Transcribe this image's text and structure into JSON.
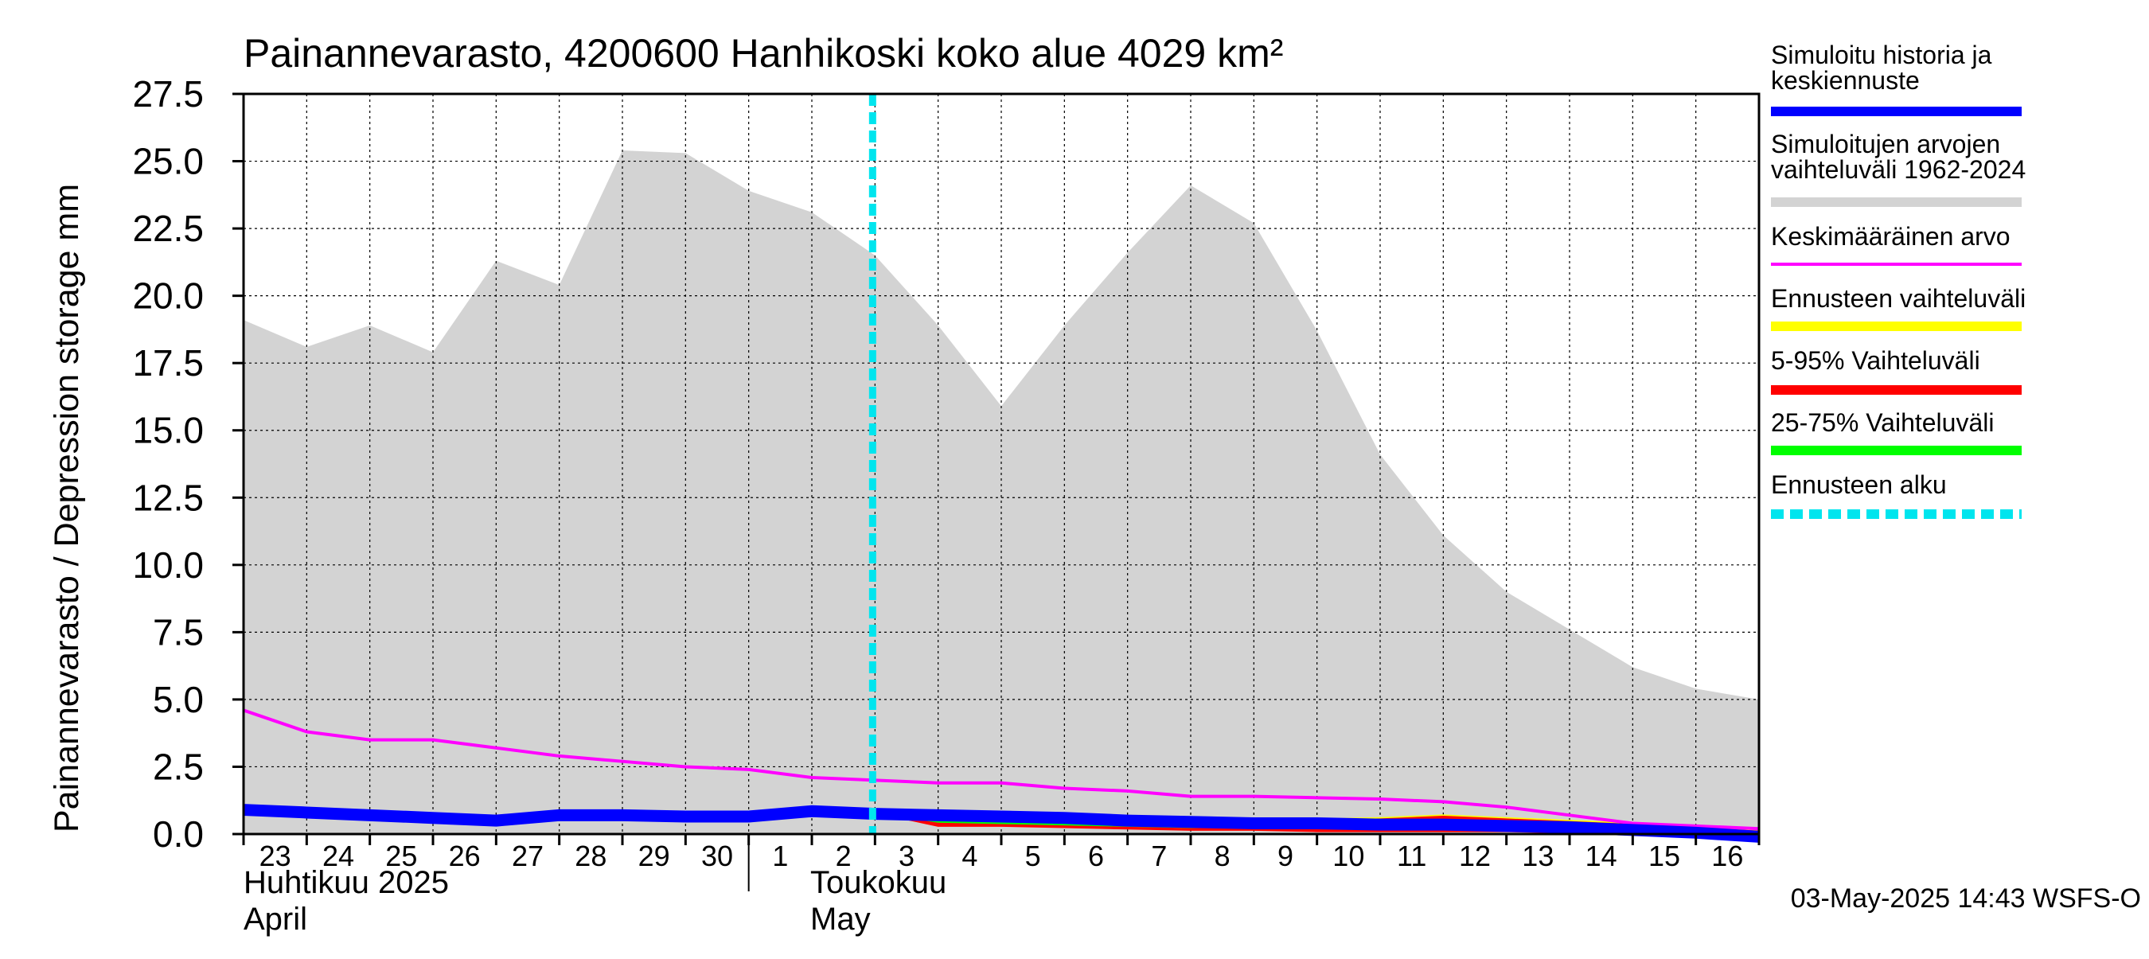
{
  "chart_data": {
    "type": "area",
    "title": "Painannevarasto, 4200600 Hanhikoski koko alue 4029 km²",
    "ylabel": "Painannevarasto / Depression storage    mm",
    "ylim": [
      0,
      27.5
    ],
    "yticks": [
      "0.0",
      "2.5",
      "5.0",
      "7.5",
      "10.0",
      "12.5",
      "15.0",
      "17.5",
      "20.0",
      "22.5",
      "25.0",
      "27.5"
    ],
    "grid": true,
    "legend_position": "right",
    "x_day_labels": [
      "23",
      "24",
      "25",
      "26",
      "27",
      "28",
      "29",
      "30",
      "1",
      "2",
      "3",
      "4",
      "5",
      "6",
      "7",
      "8",
      "9",
      "10",
      "11",
      "12",
      "13",
      "14",
      "15",
      "16"
    ],
    "month_labels": {
      "april_fi": "Huhtikuu  2025",
      "april_en": "April",
      "may_fi": "Toukokuu",
      "may_en": "May"
    },
    "forecast_start_day_index": 10,
    "series": [
      {
        "name": "Simuloitujen arvojen vaihteluväli 1962-2024",
        "kind": "band",
        "color": "#d3d3d3",
        "upper": [
          19.1,
          18.1,
          18.9,
          17.9,
          21.3,
          20.4,
          25.4,
          25.3,
          23.9,
          23.1,
          21.5,
          18.9,
          15.9,
          18.9,
          21.6,
          24.1,
          22.7,
          18.7,
          14.1,
          11.1,
          9.0,
          7.6,
          6.2,
          5.4,
          5.0
        ],
        "lower": [
          0.0,
          0.0,
          0.0,
          0.0,
          0.0,
          0.0,
          0.0,
          0.0,
          0.0,
          0.0,
          0.0,
          0.0,
          0.0,
          0.0,
          0.0,
          0.0,
          0.0,
          0.0,
          0.0,
          0.0,
          0.0,
          0.0,
          0.0,
          0.0,
          0.0
        ]
      },
      {
        "name": "Keskimääräinen arvo",
        "kind": "line",
        "color": "#ff00ff",
        "values": [
          4.6,
          3.8,
          3.5,
          3.5,
          3.2,
          2.9,
          2.7,
          2.5,
          2.4,
          2.1,
          2.0,
          1.9,
          1.9,
          1.7,
          1.6,
          1.4,
          1.4,
          1.35,
          1.3,
          1.2,
          1.0,
          0.7,
          0.4,
          0.3,
          0.2
        ]
      },
      {
        "name": "Ennusteen vaihteluväli",
        "kind": "forecast_band",
        "color": "#ffff00",
        "upper": [
          0.8,
          0.7,
          0.7,
          0.65,
          0.6,
          0.55,
          0.55,
          0.55,
          0.6,
          0.7,
          0.6,
          0.5,
          0.4,
          0.25,
          0.15
        ],
        "lower": [
          0.8,
          0.6,
          0.5,
          0.45,
          0.4,
          0.35,
          0.3,
          0.3,
          0.3,
          0.25,
          0.2,
          0.15,
          0.1,
          0.05,
          0.0
        ]
      },
      {
        "name": "5-95% Vaihteluväli",
        "kind": "forecast_band",
        "color": "#ff0000",
        "upper": [
          0.8,
          0.7,
          0.65,
          0.6,
          0.55,
          0.5,
          0.5,
          0.5,
          0.55,
          0.65,
          0.55,
          0.45,
          0.35,
          0.2,
          0.1
        ],
        "lower": [
          0.8,
          0.3,
          0.3,
          0.25,
          0.2,
          0.15,
          0.15,
          0.1,
          0.1,
          0.1,
          0.1,
          0.05,
          0.05,
          0.0,
          0.0
        ]
      },
      {
        "name": "25-75% Vaihteluväli",
        "kind": "forecast_band",
        "color": "#00ff00",
        "upper": [
          0.8,
          0.6,
          0.55,
          0.5,
          0.45,
          0.4,
          0.4,
          0.4,
          0.45,
          0.5,
          0.45,
          0.35,
          0.25,
          0.15,
          0.05
        ],
        "lower": [
          0.8,
          0.45,
          0.4,
          0.35,
          0.3,
          0.25,
          0.25,
          0.25,
          0.25,
          0.25,
          0.2,
          0.15,
          0.1,
          0.05,
          0.0
        ]
      },
      {
        "name": "Simuloitu historia ja keskiennuste",
        "kind": "line",
        "color": "#0000ff",
        "values": [
          0.9,
          0.8,
          0.7,
          0.6,
          0.5,
          0.7,
          0.7,
          0.65,
          0.65,
          0.85,
          0.75,
          0.7,
          0.65,
          0.6,
          0.5,
          0.45,
          0.4,
          0.4,
          0.35,
          0.35,
          0.3,
          0.25,
          0.15,
          0.05,
          -0.1
        ]
      }
    ],
    "legend": [
      {
        "label": "Simuloitu historia ja keskiennuste",
        "color": "#0000ff",
        "style": "thick"
      },
      {
        "label": "Simuloitujen arvojen vaihteluväli 1962-2024",
        "color": "#d3d3d3",
        "style": "thick"
      },
      {
        "label": "Keskimääräinen arvo",
        "color": "#ff00ff",
        "style": "thin"
      },
      {
        "label": "Ennusteen vaihteluväli",
        "color": "#ffff00",
        "style": "thick"
      },
      {
        "label": "5-95% Vaihteluväli",
        "color": "#ff0000",
        "style": "thick"
      },
      {
        "label": "25-75% Vaihteluväli",
        "color": "#00ff00",
        "style": "thick"
      },
      {
        "label": "Ennusteen alku",
        "color": "#00e5ee",
        "style": "dashed"
      }
    ],
    "footer": "03-May-2025 14:43 WSFS-O"
  }
}
